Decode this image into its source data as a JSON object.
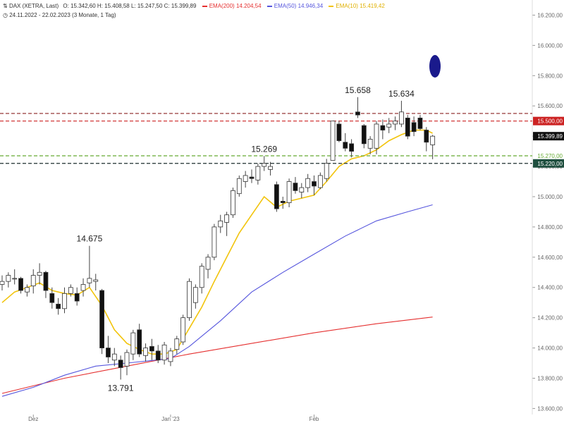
{
  "header": {
    "instrument_icon": "chart-type-icon",
    "instrument": "DAX (XETRA, Last)",
    "ohlc": "O: 15.342,60  H: 15.408,58  L: 15.247,50  C: 15.399,89",
    "range_icon": "clock-icon",
    "range": "24.11.2022 - 22.02.2023  (3 Monate, 1 Tag)",
    "legend": [
      {
        "label": "EMA(200)",
        "value": "14.204,54",
        "color": "#e53030"
      },
      {
        "label": "EMA(50)",
        "value": "14.946,34",
        "color": "#5555dd"
      },
      {
        "label": "EMA(10)",
        "value": "15.419,42",
        "color": "#f2c40c"
      }
    ]
  },
  "chart_data": {
    "type": "candlestick",
    "ylim": [
      13560,
      16300
    ],
    "y_ticks": [
      13600,
      13800,
      14000,
      14200,
      14400,
      14600,
      14800,
      15000,
      15200,
      15400,
      15600,
      15800,
      16000,
      16200
    ],
    "y_tick_labels": [
      "13.600,00",
      "13.800,00",
      "14.000,00",
      "14.200,00",
      "14.400,00",
      "14.600,00",
      "14.800,00",
      "15.000,00",
      "15.200,00",
      "15.400,00",
      "15.600,00",
      "15.800,00",
      "16.000,00",
      "16.200,00"
    ],
    "x_ticks": [
      {
        "index": 5,
        "label": "Dez"
      },
      {
        "index": 27,
        "label": "Jan '23"
      },
      {
        "index": 50,
        "label": "Feb"
      }
    ],
    "candles": [
      [
        14420,
        14480,
        14380,
        14440
      ],
      [
        14440,
        14500,
        14400,
        14480
      ],
      [
        14460,
        14520,
        14420,
        14460
      ],
      [
        14460,
        14470,
        14360,
        14380
      ],
      [
        14370,
        14420,
        14340,
        14400
      ],
      [
        14410,
        14520,
        14360,
        14480
      ],
      [
        14480,
        14560,
        14420,
        14500
      ],
      [
        14500,
        14510,
        14330,
        14380
      ],
      [
        14360,
        14400,
        14260,
        14300
      ],
      [
        14290,
        14330,
        14220,
        14260
      ],
      [
        14260,
        14400,
        14230,
        14360
      ],
      [
        14360,
        14420,
        14340,
        14400
      ],
      [
        14360,
        14400,
        14280,
        14310
      ],
      [
        14380,
        14460,
        14340,
        14420
      ],
      [
        14430,
        14675,
        14400,
        14460
      ],
      [
        14440,
        14490,
        14380,
        14450
      ],
      [
        14380,
        14390,
        13960,
        14000
      ],
      [
        14000,
        14080,
        13900,
        13940
      ],
      [
        13920,
        14000,
        13880,
        13960
      ],
      [
        13920,
        13950,
        13791,
        13870
      ],
      [
        13880,
        13990,
        13820,
        13970
      ],
      [
        13960,
        14120,
        13920,
        14100
      ],
      [
        14120,
        14160,
        13940,
        13960
      ],
      [
        13950,
        14030,
        13910,
        14000
      ],
      [
        14010,
        14060,
        13920,
        13980
      ],
      [
        13980,
        14020,
        13900,
        13920
      ],
      [
        13920,
        14040,
        13890,
        14020
      ],
      [
        13910,
        14000,
        13880,
        13980
      ],
      [
        13990,
        14080,
        13960,
        14060
      ],
      [
        14040,
        14220,
        14020,
        14200
      ],
      [
        14200,
        14460,
        14180,
        14440
      ],
      [
        14300,
        14420,
        14260,
        14400
      ],
      [
        14400,
        14560,
        14360,
        14540
      ],
      [
        14520,
        14620,
        14460,
        14600
      ],
      [
        14600,
        14820,
        14580,
        14800
      ],
      [
        14800,
        14880,
        14760,
        14840
      ],
      [
        14830,
        14900,
        14740,
        14880
      ],
      [
        14880,
        15060,
        14860,
        15040
      ],
      [
        15020,
        15140,
        15000,
        15120
      ],
      [
        15100,
        15170,
        15060,
        15140
      ],
      [
        15130,
        15180,
        15090,
        15120
      ],
      [
        15110,
        15220,
        15080,
        15200
      ],
      [
        15200,
        15269,
        15170,
        15220
      ],
      [
        15180,
        15230,
        15140,
        15200
      ],
      [
        15080,
        15100,
        14900,
        14920
      ],
      [
        14970,
        15000,
        14920,
        14960
      ],
      [
        14960,
        15120,
        14930,
        15100
      ],
      [
        15090,
        15130,
        15020,
        15040
      ],
      [
        15030,
        15090,
        14990,
        15060
      ],
      [
        15060,
        15150,
        15030,
        15120
      ],
      [
        15100,
        15140,
        15010,
        15070
      ],
      [
        15060,
        15160,
        15050,
        15140
      ],
      [
        15120,
        15250,
        15100,
        15220
      ],
      [
        15240,
        15500,
        15240,
        15500
      ],
      [
        15480,
        15500,
        15360,
        15370
      ],
      [
        15360,
        15420,
        15300,
        15320
      ],
      [
        15350,
        15380,
        15260,
        15300
      ],
      [
        15560,
        15658,
        15520,
        15540
      ],
      [
        15470,
        15480,
        15320,
        15350
      ],
      [
        15320,
        15400,
        15280,
        15380
      ],
      [
        15320,
        15500,
        15280,
        15480
      ],
      [
        15470,
        15510,
        15380,
        15440
      ],
      [
        15460,
        15520,
        15420,
        15480
      ],
      [
        15480,
        15530,
        15440,
        15500
      ],
      [
        15480,
        15634,
        15460,
        15560
      ],
      [
        15520,
        15540,
        15380,
        15400
      ],
      [
        15490,
        15530,
        15400,
        15430
      ],
      [
        15520,
        15540,
        15440,
        15450
      ],
      [
        15440,
        15460,
        15300,
        15360
      ],
      [
        15342.6,
        15408.58,
        15247.5,
        15399.89
      ]
    ],
    "series": [
      {
        "name": "EMA(200)",
        "color": "#e53030",
        "points": [
          [
            0,
            13700
          ],
          [
            10,
            13800
          ],
          [
            20,
            13880
          ],
          [
            30,
            13960
          ],
          [
            40,
            14030
          ],
          [
            50,
            14100
          ],
          [
            60,
            14160
          ],
          [
            69,
            14204.54
          ]
        ]
      },
      {
        "name": "EMA(50)",
        "color": "#5555dd",
        "points": [
          [
            0,
            13680
          ],
          [
            5,
            13740
          ],
          [
            10,
            13820
          ],
          [
            15,
            13880
          ],
          [
            20,
            13900
          ],
          [
            27,
            13930
          ],
          [
            30,
            14010
          ],
          [
            35,
            14180
          ],
          [
            40,
            14370
          ],
          [
            45,
            14500
          ],
          [
            50,
            14620
          ],
          [
            55,
            14740
          ],
          [
            60,
            14840
          ],
          [
            65,
            14900
          ],
          [
            69,
            14946.34
          ]
        ]
      },
      {
        "name": "EMA(10)",
        "color": "#f2c40c",
        "points": [
          [
            0,
            14300
          ],
          [
            2,
            14370
          ],
          [
            4,
            14400
          ],
          [
            6,
            14430
          ],
          [
            8,
            14380
          ],
          [
            10,
            14360
          ],
          [
            12,
            14350
          ],
          [
            14,
            14400
          ],
          [
            16,
            14280
          ],
          [
            18,
            14120
          ],
          [
            20,
            14030
          ],
          [
            22,
            13990
          ],
          [
            24,
            13960
          ],
          [
            26,
            13960
          ],
          [
            28,
            13990
          ],
          [
            30,
            14130
          ],
          [
            32,
            14270
          ],
          [
            34,
            14440
          ],
          [
            36,
            14600
          ],
          [
            38,
            14760
          ],
          [
            40,
            14880
          ],
          [
            42,
            15000
          ],
          [
            44,
            14930
          ],
          [
            46,
            14970
          ],
          [
            48,
            14990
          ],
          [
            50,
            15010
          ],
          [
            52,
            15100
          ],
          [
            54,
            15200
          ],
          [
            56,
            15250
          ],
          [
            58,
            15270
          ],
          [
            60,
            15310
          ],
          [
            62,
            15370
          ],
          [
            64,
            15410
          ],
          [
            66,
            15440
          ],
          [
            68,
            15440
          ],
          [
            69,
            15419.42
          ]
        ]
      }
    ],
    "hlines": [
      {
        "value": 15550,
        "color": "#8b2020",
        "style": "dash",
        "label": ""
      },
      {
        "value": 15500,
        "color": "#cc2222",
        "style": "dash",
        "label": "15.500,00",
        "badge": "#cc2222"
      },
      {
        "value": 15270,
        "color": "#66aa33",
        "style": "dash",
        "label": "15.270,00",
        "badge": "none"
      },
      {
        "value": 15220,
        "color": "#1e2e2e",
        "style": "dash",
        "label": "15.220,00",
        "badge": "#1f4f3f"
      }
    ],
    "last_price": {
      "value": 15399.89,
      "label": "15.399,89",
      "badge": "#111111"
    },
    "annotations": [
      {
        "text": "14.675",
        "index": 14,
        "value": 14675,
        "pos": "above"
      },
      {
        "text": "13.791",
        "index": 19,
        "value": 13791,
        "pos": "below"
      },
      {
        "text": "15.269",
        "index": 42,
        "value": 15269,
        "pos": "above"
      },
      {
        "text": "15.658",
        "index": 57,
        "value": 15658,
        "pos": "above"
      },
      {
        "text": "15.634",
        "index": 64,
        "value": 15634,
        "pos": "above"
      }
    ],
    "marker": {
      "shape": "ellipse",
      "color": "#1a1a8c"
    }
  }
}
